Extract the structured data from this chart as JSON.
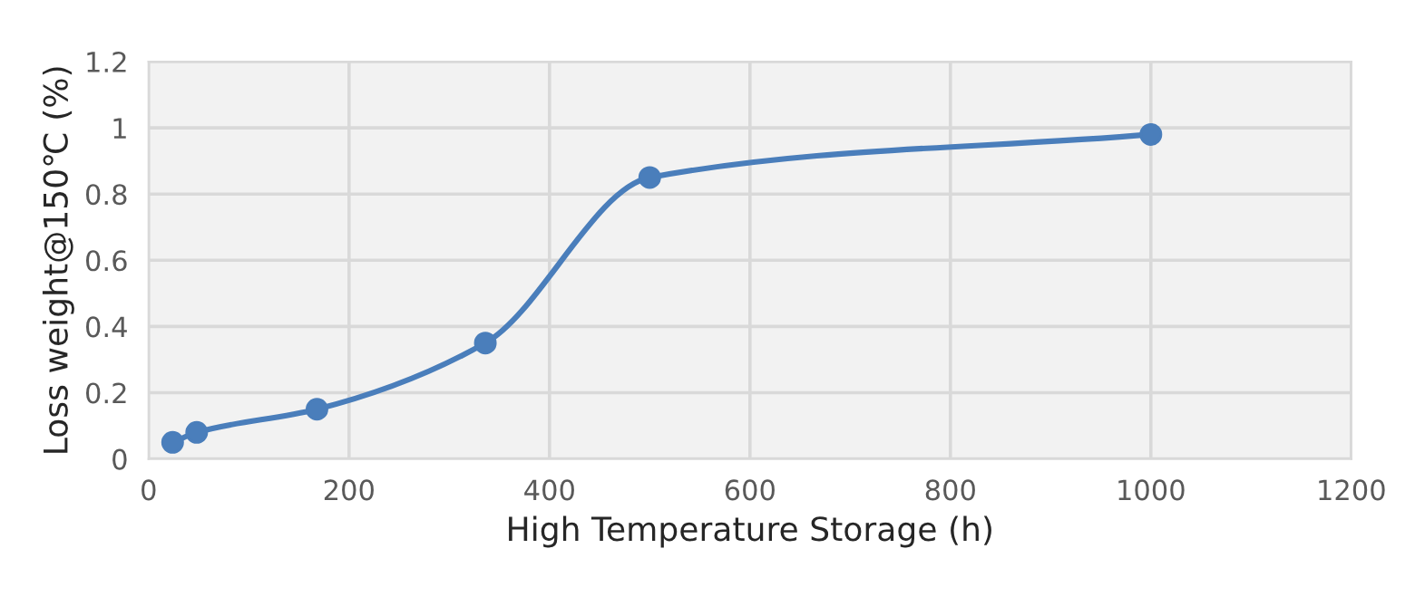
{
  "chart_data": {
    "type": "line",
    "xlabel": "High Temperature Storage (h)",
    "ylabel": "Loss weight@150℃ (%)",
    "x": [
      24,
      48,
      168,
      336,
      500,
      1000
    ],
    "series": [
      {
        "color": "#4a7ebb",
        "values": [
          0.05,
          0.08,
          0.15,
          0.35,
          0.85,
          0.98
        ]
      }
    ],
    "xlim": [
      0,
      1200
    ],
    "xticks": [
      0,
      200,
      400,
      600,
      800,
      1000,
      1200
    ],
    "ylim": [
      0,
      1.2
    ],
    "yticks": [
      0,
      0.2,
      0.4,
      0.6,
      0.8,
      1,
      1.2
    ],
    "grid": true,
    "marker": "circle",
    "line_style": "solid"
  }
}
